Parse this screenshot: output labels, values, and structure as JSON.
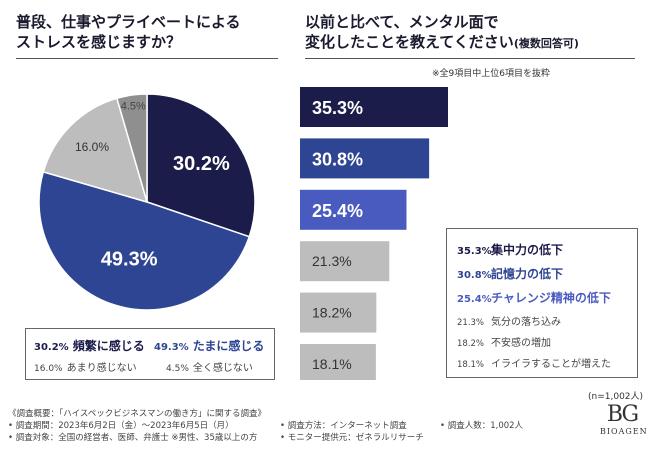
{
  "left": {
    "title_line1": "普段、仕事やプライベートによる",
    "title_line2": "ストレスを感じますか？"
  },
  "right": {
    "title_line1": "以前と比べて、メンタル面で",
    "title_line2": "変化したことを教えてください",
    "title_suffix": "(複数回答可)",
    "note": "※全9項目中上位6項目を抜粋",
    "sample_size": "(n=1,002人)"
  },
  "chart_data": [
    {
      "type": "pie",
      "title": "普段、仕事やプライベートによるストレスを感じますか？",
      "labels": [
        "頻繁に感じる",
        "たまに感じる",
        "あまり感じない",
        "全く感じない"
      ],
      "values": [
        30.2,
        49.3,
        16.0,
        4.5
      ],
      "value_labels": [
        "30.2%",
        "49.3%",
        "16.0%",
        "4.5%"
      ],
      "colors": [
        "#1c1c4a",
        "#2e4593",
        "#bdbdbd",
        "#8f8f8f"
      ],
      "label_colors": [
        "#ffffff",
        "#ffffff",
        "#333333",
        "#444444"
      ]
    },
    {
      "type": "bar",
      "orientation": "horizontal",
      "title": "以前と比べて、メンタル面で変化したことを教えてください(複数回答可)",
      "categories": [
        "集中力の低下",
        "記憶力の低下",
        "チャレンジ精神の低下",
        "気分の落ち込み",
        "不安感の増加",
        "イライラすることが増えた"
      ],
      "values": [
        35.3,
        30.8,
        25.4,
        21.3,
        18.2,
        18.1
      ],
      "value_labels": [
        "35.3%",
        "30.8%",
        "25.4%",
        "21.3%",
        "18.2%",
        "18.1%"
      ],
      "colors": [
        "#1c1c4a",
        "#2e4593",
        "#4a5bbf",
        "#bdbdbd",
        "#bdbdbd",
        "#bdbdbd"
      ],
      "label_colors": [
        "#ffffff",
        "#ffffff",
        "#ffffff",
        "#333333",
        "#333333",
        "#333333"
      ],
      "xlim": [
        0,
        35.3
      ]
    }
  ],
  "footer": {
    "survey_title": "《調査概要：「ハイスペックビジネスマンの働き方」に関する調査》",
    "period": "• 調査期間：2023年6月2日（金）〜2023年6月5日（月）",
    "target": "• 調査対象：全国の経営者、医師、弁護士 ※男性、35歳以上の方",
    "method": "• 調査方法：インターネット調査",
    "provider": "• モニター提供元：ゼネラルリサーチ",
    "count": "• 調査人数：1,002人"
  },
  "logo": {
    "mark": "BG",
    "name": "BIOAGEN"
  }
}
